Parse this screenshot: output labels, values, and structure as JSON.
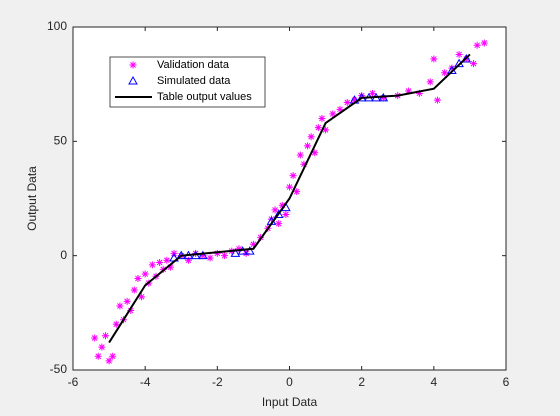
{
  "chart_data": {
    "type": "scatter",
    "xlabel": "Input Data",
    "ylabel": "Output Data",
    "xlim": [
      -6,
      6
    ],
    "xticks": [
      -6,
      -4,
      -2,
      0,
      2,
      4,
      6
    ],
    "ylim": [
      -50,
      100
    ],
    "yticks": [
      -50,
      0,
      50,
      100
    ],
    "legend": "upper-left",
    "series": [
      {
        "name": "Validation data",
        "color": "#ff00ff",
        "marker": "asterisk",
        "x": [
          -5.4,
          -5.3,
          -5.2,
          -5.1,
          -5.0,
          -4.9,
          -4.8,
          -4.7,
          -4.6,
          -4.5,
          -4.4,
          -4.3,
          -4.2,
          -4.1,
          -4.0,
          -3.9,
          -3.8,
          -3.7,
          -3.6,
          -3.5,
          -3.4,
          -3.3,
          -3.2,
          -3.0,
          -2.8,
          -2.6,
          -2.4,
          -2.2,
          -2.0,
          -1.8,
          -1.6,
          -1.4,
          -1.2,
          -1.0,
          -0.8,
          -0.6,
          -0.5,
          -0.4,
          -0.3,
          -0.2,
          -0.1,
          0.0,
          0.1,
          0.2,
          0.3,
          0.4,
          0.5,
          0.6,
          0.7,
          0.8,
          0.9,
          1.0,
          1.2,
          1.4,
          1.6,
          1.8,
          2.0,
          2.3,
          2.6,
          3.0,
          3.3,
          3.6,
          3.9,
          4.0,
          4.1,
          4.3,
          4.5,
          4.7,
          4.9,
          5.1,
          5.2,
          5.4
        ],
        "values": [
          -36,
          -44,
          -40,
          -35,
          -46,
          -44,
          -30,
          -22,
          -28,
          -20,
          -24,
          -15,
          -10,
          -18,
          -8,
          -12,
          -4,
          -9,
          -3,
          -6,
          -2,
          -5,
          1,
          0,
          -2,
          1,
          0,
          -1,
          1,
          0,
          2,
          3,
          1,
          5,
          8,
          12,
          16,
          20,
          14,
          22,
          18,
          30,
          35,
          28,
          44,
          40,
          48,
          52,
          45,
          56,
          60,
          55,
          62,
          64,
          67,
          68,
          70,
          71,
          69,
          70,
          72,
          71,
          76,
          86,
          68,
          80,
          82,
          88,
          86,
          84,
          92,
          93
        ]
      },
      {
        "name": "Simulated data",
        "color": "#0000ff",
        "marker": "triangle",
        "x": [
          -3.2,
          -3.0,
          -2.8,
          -2.6,
          -2.4,
          -1.5,
          -1.3,
          -1.1,
          -0.5,
          -0.3,
          -0.1,
          1.8,
          2.0,
          2.2,
          2.4,
          2.6,
          4.5,
          4.7,
          4.9
        ],
        "values": [
          -1,
          0,
          0,
          0,
          0,
          1,
          2,
          2,
          15,
          18,
          21,
          68,
          69,
          69,
          69,
          69,
          81,
          84,
          86
        ]
      },
      {
        "name": "Table output values",
        "color": "#000000",
        "marker": "line",
        "x": [
          -5,
          -4,
          -3,
          -1,
          0,
          1,
          2,
          3,
          4,
          5
        ],
        "values": [
          -38,
          -13,
          0,
          3,
          25,
          58,
          69,
          70,
          73,
          88
        ]
      }
    ]
  }
}
